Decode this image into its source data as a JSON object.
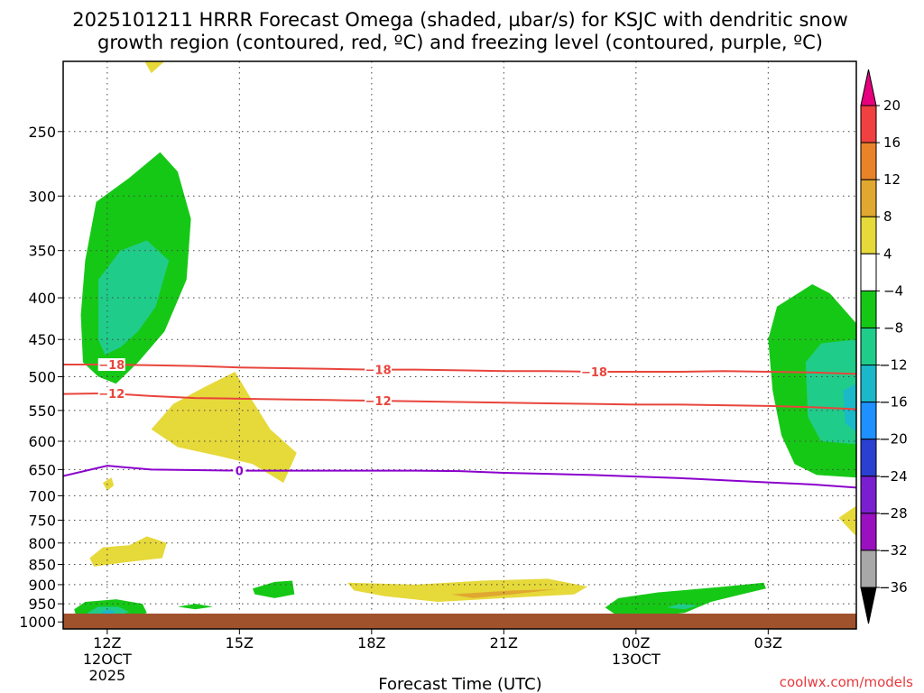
{
  "title_line1": "2025101211 HRRR Forecast Omega (shaded, µbar/s) for KSJC with dendritic snow",
  "title_line2": "growth region (contoured, red, ºC) and freezing level (contoured, purple, ºC)",
  "xlabel": "Forecast Time (UTC)",
  "credit": "coolwx.com/models",
  "colors": {
    "snow_growth_contour": "#e8453c",
    "freezing_contour": "#8a00cc",
    "terrain": "#a0522d",
    "grid": "#444444"
  },
  "chart_data": {
    "type": "heatmap",
    "x_axis": {
      "unit": "forecast hour",
      "range": [
        11,
        29
      ],
      "ticks": [
        {
          "hour": 12,
          "label": "12Z",
          "sublabel": "12OCT",
          "sublabel2": "2025"
        },
        {
          "hour": 15,
          "label": "15Z",
          "sublabel": "",
          "sublabel2": ""
        },
        {
          "hour": 18,
          "label": "18Z",
          "sublabel": "",
          "sublabel2": ""
        },
        {
          "hour": 21,
          "label": "21Z",
          "sublabel": "",
          "sublabel2": ""
        },
        {
          "hour": 24,
          "label": "00Z",
          "sublabel": "13OCT",
          "sublabel2": ""
        },
        {
          "hour": 27,
          "label": "03Z",
          "sublabel": "",
          "sublabel2": ""
        }
      ]
    },
    "y_axis": {
      "unit": "pressure (mb)",
      "scale": "log",
      "range": [
        1020,
        205
      ],
      "ticks": [
        250,
        300,
        350,
        400,
        450,
        500,
        550,
        600,
        650,
        700,
        750,
        800,
        850,
        900,
        950,
        1000
      ]
    },
    "colorbar": {
      "labels": [
        "20",
        "16",
        "12",
        "8",
        "4",
        "−4",
        "−8",
        "−12",
        "−16",
        "−20",
        "−24",
        "−28",
        "−32",
        "−36"
      ],
      "bins": [
        {
          "min": 20,
          "max": 99,
          "color": "#e6007e"
        },
        {
          "min": 16,
          "max": 20,
          "color": "#f04040"
        },
        {
          "min": 12,
          "max": 16,
          "color": "#e8832a"
        },
        {
          "min": 8,
          "max": 12,
          "color": "#e0a830"
        },
        {
          "min": 4,
          "max": 8,
          "color": "#e6d93a"
        },
        {
          "min": -4,
          "max": 4,
          "color": "#ffffff"
        },
        {
          "min": -8,
          "max": -4,
          "color": "#16c816"
        },
        {
          "min": -12,
          "max": -8,
          "color": "#20cc8a"
        },
        {
          "min": -16,
          "max": -12,
          "color": "#1ab8c8"
        },
        {
          "min": -20,
          "max": -16,
          "color": "#1e90ff"
        },
        {
          "min": -24,
          "max": -20,
          "color": "#2a40d0"
        },
        {
          "min": -28,
          "max": -24,
          "color": "#7a1fd0"
        },
        {
          "min": -32,
          "max": -28,
          "color": "#9a10c0"
        },
        {
          "min": -36,
          "max": -32,
          "color": "#a8a8a8"
        },
        {
          "min": -99,
          "max": -36,
          "color": "#000000"
        }
      ]
    },
    "omega_regions": [
      {
        "name": "ascent-upper-left",
        "value_bin": "-4 to -8",
        "points": [
          [
            11.45,
            480
          ],
          [
            11.4,
            420
          ],
          [
            11.5,
            360
          ],
          [
            11.75,
            305
          ],
          [
            12.5,
            285
          ],
          [
            13.2,
            265
          ],
          [
            13.6,
            280
          ],
          [
            13.9,
            320
          ],
          [
            13.8,
            380
          ],
          [
            13.3,
            440
          ],
          [
            12.7,
            480
          ],
          [
            12.2,
            510
          ],
          [
            11.8,
            500
          ]
        ]
      },
      {
        "name": "ascent-upper-left-core",
        "value_bin": "-8 to -12",
        "points": [
          [
            11.8,
            450
          ],
          [
            11.8,
            380
          ],
          [
            12.3,
            350
          ],
          [
            12.9,
            340
          ],
          [
            13.4,
            360
          ],
          [
            13.1,
            410
          ],
          [
            12.7,
            440
          ],
          [
            12.3,
            460
          ],
          [
            11.95,
            470
          ]
        ]
      },
      {
        "name": "ascent-upper-right",
        "value_bin": "-4 to -8",
        "points": [
          [
            29,
            430
          ],
          [
            28.4,
            395
          ],
          [
            28.0,
            385
          ],
          [
            27.2,
            410
          ],
          [
            27.0,
            450
          ],
          [
            27.1,
            520
          ],
          [
            27.3,
            590
          ],
          [
            27.6,
            640
          ],
          [
            28.1,
            660
          ],
          [
            29,
            665
          ]
        ]
      },
      {
        "name": "ascent-upper-right-core",
        "value_bin": "-8 to -12",
        "points": [
          [
            29,
            450
          ],
          [
            28.2,
            455
          ],
          [
            27.85,
            480
          ],
          [
            27.9,
            560
          ],
          [
            28.2,
            600
          ],
          [
            29,
            605
          ]
        ]
      },
      {
        "name": "ascent-upper-right-inner",
        "value_bin": "-12 to -16",
        "points": [
          [
            29,
            510
          ],
          [
            28.7,
            520
          ],
          [
            28.75,
            570
          ],
          [
            29,
            585
          ]
        ]
      },
      {
        "name": "sinking-mid-left",
        "value_bin": "4 to 8",
        "points": [
          [
            13.0,
            580
          ],
          [
            13.5,
            540
          ],
          [
            14.2,
            515
          ],
          [
            14.9,
            493
          ],
          [
            15.2,
            525
          ],
          [
            15.7,
            580
          ],
          [
            16.3,
            620
          ],
          [
            16.0,
            675
          ],
          [
            15.3,
            640
          ],
          [
            14.5,
            625
          ],
          [
            13.6,
            610
          ]
        ]
      },
      {
        "name": "sinking-top-sliver",
        "value_bin": "4 to 8",
        "points": [
          [
            12.85,
            205
          ],
          [
            13.3,
            205
          ],
          [
            13.0,
            212
          ]
        ]
      },
      {
        "name": "sinking-small-left",
        "value_bin": "4 to 8",
        "points": [
          [
            11.9,
            675
          ],
          [
            12.1,
            665
          ],
          [
            12.15,
            680
          ],
          [
            12.0,
            690
          ]
        ]
      },
      {
        "name": "sinking-low-left",
        "value_bin": "4 to 8",
        "points": [
          [
            11.6,
            835
          ],
          [
            11.9,
            810
          ],
          [
            12.5,
            805
          ],
          [
            12.9,
            785
          ],
          [
            13.35,
            800
          ],
          [
            13.25,
            835
          ],
          [
            12.4,
            845
          ],
          [
            11.7,
            855
          ]
        ]
      },
      {
        "name": "sinking-right-edge",
        "value_bin": "4 to 8",
        "points": [
          [
            28.6,
            745
          ],
          [
            29,
            720
          ],
          [
            29,
            785
          ]
        ]
      },
      {
        "name": "sinking-low-mid",
        "value_bin": "4 to 8",
        "points": [
          [
            17.45,
            895
          ],
          [
            19.0,
            900
          ],
          [
            20.5,
            890
          ],
          [
            22.0,
            885
          ],
          [
            22.9,
            905
          ],
          [
            22.6,
            925
          ],
          [
            21.0,
            935
          ],
          [
            19.5,
            945
          ],
          [
            18.3,
            930
          ],
          [
            17.6,
            915
          ]
        ]
      },
      {
        "name": "sinking-low-mid-core",
        "value_bin": "8 to 12",
        "points": [
          [
            19.8,
            925
          ],
          [
            21.2,
            915
          ],
          [
            22.2,
            912
          ],
          [
            21.2,
            925
          ],
          [
            20.3,
            935
          ]
        ]
      },
      {
        "name": "ascent-sfc-left",
        "value_bin": "-4 to -8",
        "points": [
          [
            11.25,
            965
          ],
          [
            11.5,
            945
          ],
          [
            12.2,
            938
          ],
          [
            12.8,
            950
          ],
          [
            12.9,
            975
          ],
          [
            12.5,
            990
          ],
          [
            11.8,
            992
          ],
          [
            11.3,
            985
          ]
        ]
      },
      {
        "name": "ascent-sfc-left-core",
        "value_bin": "-8 to -12",
        "points": [
          [
            11.55,
            975
          ],
          [
            11.8,
            958
          ],
          [
            12.25,
            958
          ],
          [
            12.5,
            972
          ],
          [
            12.2,
            985
          ],
          [
            11.7,
            987
          ]
        ]
      },
      {
        "name": "ascent-sfc-left-inner",
        "value_bin": "-12 to -16",
        "points": [
          [
            11.85,
            975
          ],
          [
            12.0,
            965
          ],
          [
            12.2,
            972
          ],
          [
            12.0,
            982
          ]
        ]
      },
      {
        "name": "ascent-sfc-small",
        "value_bin": "-4 to -8",
        "points": [
          [
            13.6,
            958
          ],
          [
            14.0,
            950
          ],
          [
            14.4,
            958
          ],
          [
            14.0,
            965
          ]
        ]
      },
      {
        "name": "ascent-low-15z",
        "value_bin": "-4 to -8",
        "points": [
          [
            15.3,
            910
          ],
          [
            15.8,
            893
          ],
          [
            16.2,
            890
          ],
          [
            16.25,
            925
          ],
          [
            15.8,
            935
          ],
          [
            15.35,
            925
          ]
        ]
      },
      {
        "name": "ascent-sfc-right",
        "value_bin": "-4 to -8",
        "points": [
          [
            23.3,
            960
          ],
          [
            23.6,
            935
          ],
          [
            24.5,
            920
          ],
          [
            25.3,
            912
          ],
          [
            26.0,
            905
          ],
          [
            26.9,
            895
          ],
          [
            26.95,
            910
          ],
          [
            26.4,
            925
          ],
          [
            25.7,
            945
          ],
          [
            25.1,
            975
          ],
          [
            24.3,
            985
          ],
          [
            23.6,
            985
          ]
        ]
      },
      {
        "name": "ascent-sfc-right-core",
        "value_bin": "-8 to -12",
        "points": [
          [
            24.7,
            960
          ],
          [
            25.0,
            950
          ],
          [
            25.4,
            955
          ],
          [
            25.1,
            965
          ]
        ]
      }
    ],
    "contours": [
      {
        "name": "snow-growth-upper",
        "label": "−18",
        "color": "#e8453c",
        "points": [
          [
            11,
            483
          ],
          [
            12,
            483
          ],
          [
            13,
            484
          ],
          [
            14,
            485
          ],
          [
            15,
            487
          ],
          [
            16,
            488
          ],
          [
            17,
            489
          ],
          [
            18,
            490
          ],
          [
            19,
            490
          ],
          [
            20,
            491
          ],
          [
            21,
            492
          ],
          [
            22,
            492
          ],
          [
            23,
            493
          ],
          [
            24,
            493
          ],
          [
            25,
            493
          ],
          [
            26,
            492
          ],
          [
            27,
            493
          ],
          [
            28,
            494
          ],
          [
            29,
            496
          ]
        ],
        "label_hours": [
          12.1,
          18.15,
          23.05
        ]
      },
      {
        "name": "snow-growth-lower",
        "label": "−12",
        "color": "#e8453c",
        "points": [
          [
            11,
            525
          ],
          [
            12,
            524
          ],
          [
            13,
            528
          ],
          [
            14,
            531
          ],
          [
            15,
            532
          ],
          [
            16,
            533
          ],
          [
            17,
            534
          ],
          [
            18,
            535
          ],
          [
            19,
            536
          ],
          [
            20,
            537
          ],
          [
            21,
            538
          ],
          [
            22,
            539
          ],
          [
            23,
            540
          ],
          [
            24,
            541
          ],
          [
            25,
            541
          ],
          [
            26,
            542
          ],
          [
            27,
            543
          ],
          [
            28,
            545
          ],
          [
            29,
            548
          ]
        ],
        "label_hours": [
          12.1,
          18.15
        ]
      },
      {
        "name": "freezing-level",
        "label": "0",
        "color": "#8a00cc",
        "points": [
          [
            11,
            662
          ],
          [
            12,
            643
          ],
          [
            13,
            650
          ],
          [
            14,
            651
          ],
          [
            15,
            652
          ],
          [
            16,
            652
          ],
          [
            17,
            652
          ],
          [
            18,
            652
          ],
          [
            19,
            652
          ],
          [
            20,
            653
          ],
          [
            21,
            656
          ],
          [
            22,
            658
          ],
          [
            23,
            660
          ],
          [
            24,
            663
          ],
          [
            25,
            666
          ],
          [
            26,
            670
          ],
          [
            27,
            674
          ],
          [
            28,
            678
          ],
          [
            29,
            684
          ]
        ],
        "label_hours": [
          15.0
        ]
      }
    ]
  }
}
